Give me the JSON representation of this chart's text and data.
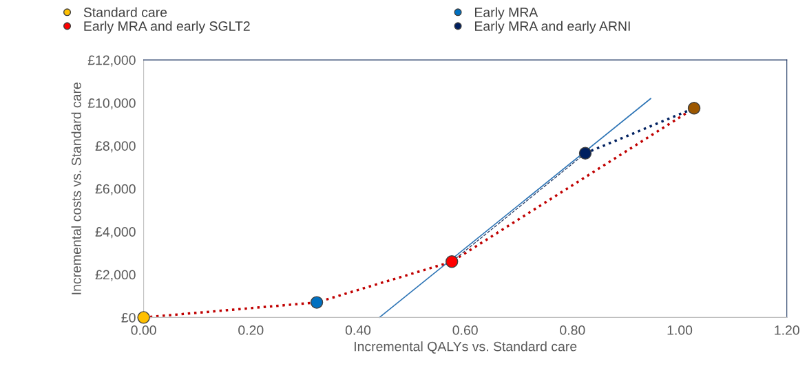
{
  "chart_data": {
    "type": "scatter",
    "xlabel": "Incremental QALYs vs. Standard care",
    "ylabel": "Incremental costs vs. Standard care",
    "xlim": [
      0,
      1.2
    ],
    "xticks": [
      {
        "value": 0,
        "label": "0.00"
      },
      {
        "value": 0.2,
        "label": "0.20"
      },
      {
        "value": 0.4,
        "label": "0.40"
      },
      {
        "value": 0.6,
        "label": "0.60"
      },
      {
        "value": 0.8,
        "label": "0.80"
      },
      {
        "value": 1.0,
        "label": "1.00"
      },
      {
        "value": 1.2,
        "label": "1.20"
      }
    ],
    "ylim": [
      0,
      12000
    ],
    "yticks": [
      {
        "value": 0,
        "label": "£0"
      },
      {
        "value": 2000,
        "label": "£2,000"
      },
      {
        "value": 4000,
        "label": "£4,000"
      },
      {
        "value": 6000,
        "label": "£6,000"
      },
      {
        "value": 8000,
        "label": "£8,000"
      },
      {
        "value": 10000,
        "label": "£10,000"
      },
      {
        "value": 12000,
        "label": "£12,000"
      }
    ],
    "grid": false,
    "legend": "top",
    "marker": "circle",
    "series": [
      {
        "type": "line",
        "color": "#2e75b6",
        "line_style": "solid",
        "marker": "none",
        "x": [
          0.44,
          0.946
        ],
        "values": [
          0,
          10200
        ]
      },
      {
        "type": "line",
        "color": "#c00000",
        "line_style": "dotted",
        "marker": "none",
        "x": [
          0,
          0.323,
          0.575,
          1.027
        ],
        "values": [
          0,
          700,
          2600,
          9750
        ]
      },
      {
        "type": "line",
        "color": "#203864",
        "line_style": "dashed",
        "marker": "none",
        "x": [
          0.575,
          0.824
        ],
        "values": [
          2600,
          7650
        ]
      },
      {
        "type": "line",
        "color": "#002060",
        "line_style": "dotted",
        "marker": "none",
        "x": [
          0.824,
          1.027
        ],
        "values": [
          7650,
          9750
        ]
      },
      {
        "name": "Standard care",
        "color": "#ffc000",
        "x": [
          0
        ],
        "values": [
          0
        ]
      },
      {
        "name": "Early MRA",
        "color": "#0070c0",
        "x": [
          0.323
        ],
        "values": [
          700
        ]
      },
      {
        "name": "Early MRA and early SGLT2",
        "color": "#ff0000",
        "x": [
          0.575
        ],
        "values": [
          2600
        ]
      },
      {
        "name": "Early MRA and early ARNI",
        "color": "#002060",
        "x": [
          0.824
        ],
        "values": [
          7650
        ]
      },
      {
        "color": "#9c5700",
        "x": [
          1.027
        ],
        "values": [
          9750
        ]
      }
    ]
  }
}
